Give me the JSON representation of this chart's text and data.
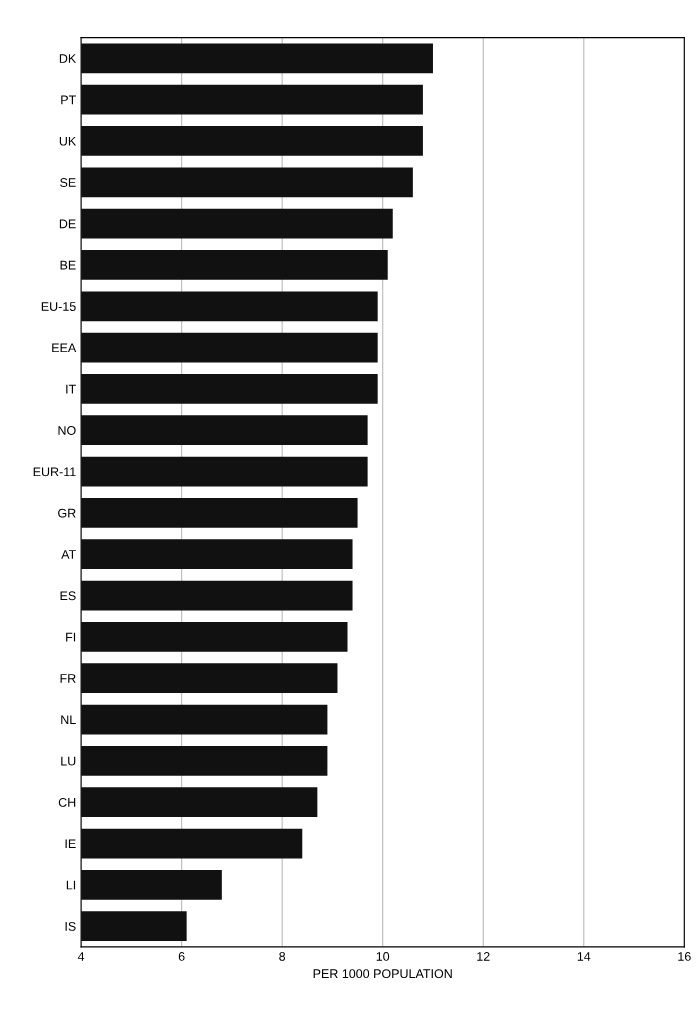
{
  "chart_data": {
    "type": "bar",
    "orientation": "horizontal",
    "xlabel": "PER 1000 POPULATION",
    "categories": [
      "DK",
      "PT",
      "UK",
      "SE",
      "DE",
      "BE",
      "EU-15",
      "EEA",
      "IT",
      "NO",
      "EUR-11",
      "GR",
      "AT",
      "ES",
      "FI",
      "FR",
      "NL",
      "LU",
      "CH",
      "IE",
      "LI",
      "IS"
    ],
    "values": [
      11.0,
      10.8,
      10.8,
      10.6,
      10.2,
      10.1,
      9.9,
      9.9,
      9.9,
      9.7,
      9.7,
      9.5,
      9.4,
      9.4,
      9.3,
      9.1,
      8.9,
      8.9,
      8.7,
      8.4,
      6.8,
      6.1
    ],
    "color": "#111111",
    "xlim": [
      4,
      16
    ],
    "xticks": [
      4,
      6,
      8,
      10,
      12,
      14,
      16
    ],
    "grid": "x"
  }
}
